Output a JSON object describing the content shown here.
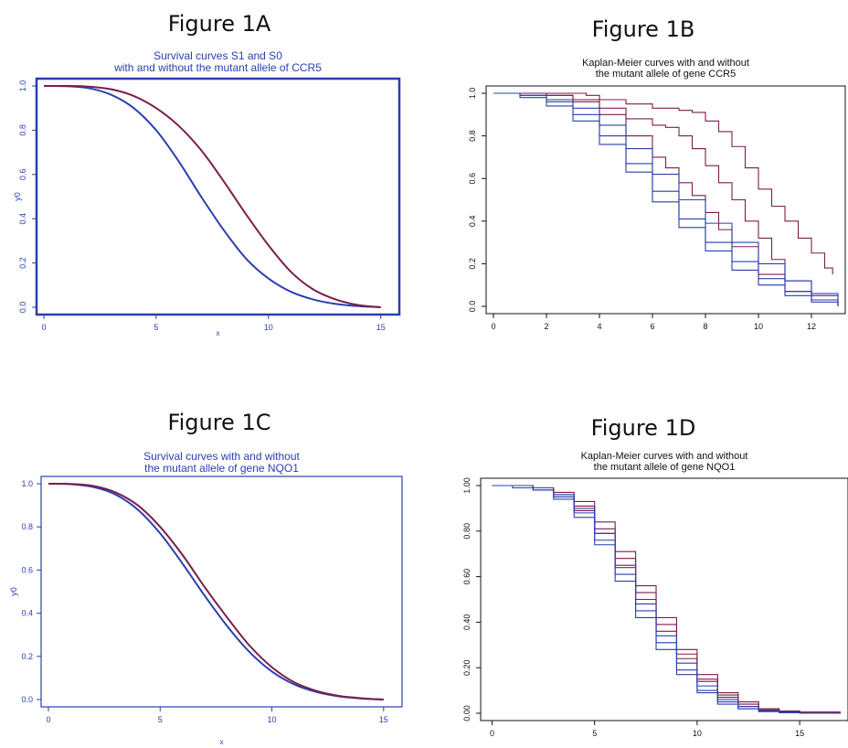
{
  "panels": {
    "a": {
      "figure_label": "Figure 1A"
    },
    "b": {
      "figure_label": "Figure 1B"
    },
    "c": {
      "figure_label": "Figure 1C"
    },
    "d": {
      "figure_label": "Figure 1D"
    }
  },
  "colors": {
    "blue": "#2b3fb0",
    "maroon": "#7a1f4a",
    "axis_blue": "#2a3fae",
    "axis_black": "#111111"
  },
  "chart_data": [
    {
      "id": "a",
      "type": "line",
      "title": "Survival curves S1 and S0\nwith and without the mutant allele of CCR5",
      "xlabel": "x",
      "ylabel": "y0",
      "xlim": [
        0,
        15.5
      ],
      "ylim": [
        0,
        1.0
      ],
      "xticks": [
        0,
        5,
        10,
        15
      ],
      "yticks": [
        0.0,
        0.2,
        0.4,
        0.6,
        0.8,
        1.0
      ],
      "ytick_labels": [
        "0.0",
        "0.2",
        "0.4",
        "0.6",
        "0.8",
        "1.0"
      ],
      "grid": false,
      "series": [
        {
          "color": "#2b3fb0",
          "x": [
            0,
            1,
            2,
            3,
            4,
            5,
            6,
            7,
            8,
            9,
            10,
            11,
            12,
            13,
            14,
            15
          ],
          "y": [
            1.0,
            0.999,
            0.99,
            0.96,
            0.9,
            0.8,
            0.66,
            0.5,
            0.35,
            0.22,
            0.13,
            0.07,
            0.035,
            0.015,
            0.005,
            0.0
          ]
        },
        {
          "color": "#7a1f4a",
          "x": [
            0,
            1,
            2,
            3,
            4,
            5,
            6,
            7,
            8,
            9,
            10,
            11,
            12,
            13,
            14,
            15
          ],
          "y": [
            1.0,
            1.0,
            0.997,
            0.985,
            0.955,
            0.9,
            0.82,
            0.71,
            0.57,
            0.42,
            0.28,
            0.16,
            0.08,
            0.035,
            0.01,
            0.0
          ]
        }
      ]
    },
    {
      "id": "b",
      "type": "line",
      "title": "Kaplan-Meier curves with and without\nthe mutant allele of gene  CCR5",
      "xlabel": "",
      "ylabel": "",
      "xlim": [
        0,
        13
      ],
      "ylim": [
        0,
        1.0
      ],
      "xticks": [
        0,
        2,
        4,
        6,
        8,
        10,
        12
      ],
      "yticks": [
        0.0,
        0.2,
        0.4,
        0.6,
        0.8,
        1.0
      ],
      "ytick_labels": [
        "0.0",
        "0.2",
        "0.4",
        "0.6",
        "0.8",
        "1.0"
      ],
      "grid": false,
      "step": true,
      "series": [
        {
          "color": "#7a1f4a",
          "x": [
            0,
            3.5,
            4,
            5,
            6,
            6.5,
            7,
            7.5,
            8,
            8.5,
            9,
            9.5,
            10,
            10.5,
            11,
            11.5,
            12,
            12.5,
            12.8
          ],
          "y": [
            1.0,
            0.99,
            0.97,
            0.95,
            0.93,
            0.93,
            0.92,
            0.91,
            0.87,
            0.82,
            0.75,
            0.65,
            0.55,
            0.47,
            0.4,
            0.32,
            0.25,
            0.18,
            0.15
          ]
        },
        {
          "color": "#7a1f4a",
          "x": [
            0,
            2,
            3,
            4,
            5,
            6,
            6.5,
            7,
            7.5,
            8,
            8.5,
            9,
            9.5,
            10,
            10.5,
            11,
            12,
            13
          ],
          "y": [
            1.0,
            0.99,
            0.97,
            0.93,
            0.88,
            0.85,
            0.84,
            0.8,
            0.74,
            0.66,
            0.58,
            0.5,
            0.4,
            0.32,
            0.22,
            0.12,
            0.05,
            0.0
          ]
        },
        {
          "color": "#7a1f4a",
          "x": [
            0,
            2,
            3,
            4,
            5,
            6,
            6.5,
            7,
            7.5,
            8,
            8.5,
            9,
            10,
            11,
            12,
            13
          ],
          "y": [
            1.0,
            0.99,
            0.96,
            0.9,
            0.8,
            0.7,
            0.65,
            0.58,
            0.52,
            0.44,
            0.36,
            0.28,
            0.15,
            0.07,
            0.03,
            0.0
          ]
        },
        {
          "color": "#2b3fb0",
          "x": [
            0,
            1,
            2,
            3,
            4,
            5,
            6,
            7,
            8,
            9,
            10,
            11,
            12,
            13
          ],
          "y": [
            1.0,
            0.99,
            0.97,
            0.93,
            0.85,
            0.74,
            0.62,
            0.5,
            0.39,
            0.3,
            0.2,
            0.12,
            0.06,
            0.04
          ]
        },
        {
          "color": "#2b3fb0",
          "x": [
            0,
            1,
            2,
            3,
            4,
            5,
            6,
            7,
            8,
            9,
            10,
            11,
            12,
            13
          ],
          "y": [
            1.0,
            0.99,
            0.96,
            0.9,
            0.8,
            0.67,
            0.54,
            0.41,
            0.3,
            0.21,
            0.13,
            0.07,
            0.03,
            0.0
          ]
        },
        {
          "color": "#2b3fb0",
          "x": [
            0,
            1,
            2,
            3,
            4,
            5,
            6,
            7,
            8,
            9,
            10,
            11,
            12,
            13
          ],
          "y": [
            1.0,
            0.98,
            0.94,
            0.87,
            0.76,
            0.63,
            0.49,
            0.37,
            0.26,
            0.17,
            0.1,
            0.05,
            0.02,
            0.0
          ]
        }
      ]
    },
    {
      "id": "c",
      "type": "line",
      "title": "Survival curves with and without\nthe mutant allele of gene NQO1",
      "xlabel": "x",
      "ylabel": "y0",
      "xlim": [
        0,
        15.5
      ],
      "ylim": [
        0,
        1.0
      ],
      "xticks": [
        0,
        5,
        10,
        15
      ],
      "yticks": [
        0.0,
        0.2,
        0.4,
        0.6,
        0.8,
        1.0
      ],
      "ytick_labels": [
        "0.0",
        "0.2",
        "0.4",
        "0.6",
        "0.8",
        "1.0"
      ],
      "grid": false,
      "series": [
        {
          "color": "#2b3fb0",
          "x": [
            0,
            1,
            2,
            3,
            4,
            5,
            6,
            7,
            8,
            9,
            10,
            11,
            12,
            13,
            14,
            15
          ],
          "y": [
            1.0,
            0.998,
            0.985,
            0.95,
            0.88,
            0.77,
            0.63,
            0.48,
            0.34,
            0.22,
            0.13,
            0.07,
            0.035,
            0.015,
            0.005,
            0.0
          ]
        },
        {
          "color": "#7a1f4a",
          "x": [
            0,
            1,
            2,
            3,
            4,
            5,
            6,
            7,
            8,
            9,
            10,
            11,
            12,
            13,
            14,
            15
          ],
          "y": [
            1.0,
            0.999,
            0.99,
            0.96,
            0.9,
            0.8,
            0.67,
            0.52,
            0.38,
            0.25,
            0.15,
            0.08,
            0.04,
            0.017,
            0.006,
            0.0
          ]
        }
      ]
    },
    {
      "id": "d",
      "type": "line",
      "title": "Kaplan-Meier curves with and without\nthe mutant allele of gene  NQO1",
      "xlabel": "",
      "ylabel": "",
      "xlim": [
        -0.2,
        17
      ],
      "ylim": [
        0,
        1.0
      ],
      "xticks": [
        0,
        5,
        10,
        15
      ],
      "yticks": [
        0.0,
        0.2,
        0.4,
        0.6,
        0.8,
        1.0
      ],
      "ytick_labels": [
        "0.00",
        "0.20",
        "0.40",
        "0.60",
        "0.80",
        "1.00"
      ],
      "grid": false,
      "step": true,
      "series": [
        {
          "color": "#7a1f4a",
          "x": [
            0,
            1,
            2,
            3,
            4,
            5,
            6,
            7,
            8,
            9,
            10,
            11,
            12,
            13,
            14,
            15,
            16,
            17
          ],
          "y": [
            1.0,
            1.0,
            0.99,
            0.97,
            0.93,
            0.84,
            0.71,
            0.56,
            0.42,
            0.28,
            0.17,
            0.09,
            0.05,
            0.02,
            0.01,
            0.005,
            0.005,
            0.005
          ]
        },
        {
          "color": "#7a1f4a",
          "x": [
            0,
            1,
            2,
            3,
            4,
            5,
            6,
            7,
            8,
            9,
            10,
            11,
            12,
            13,
            14,
            15,
            16,
            17
          ],
          "y": [
            1.0,
            1.0,
            0.99,
            0.96,
            0.91,
            0.81,
            0.68,
            0.53,
            0.39,
            0.26,
            0.15,
            0.08,
            0.04,
            0.02,
            0.01,
            0.005,
            0.005,
            0.005
          ]
        },
        {
          "color": "#7a1f4a",
          "x": [
            0,
            1,
            2,
            3,
            4,
            5,
            6,
            7,
            8,
            9,
            10,
            11,
            12,
            13,
            14,
            15,
            16,
            17
          ],
          "y": [
            1.0,
            1.0,
            0.98,
            0.95,
            0.89,
            0.79,
            0.65,
            0.5,
            0.36,
            0.24,
            0.14,
            0.07,
            0.03,
            0.015,
            0.008,
            0.005,
            0.005,
            0.005
          ]
        },
        {
          "color": "#2b3fb0",
          "x": [
            0,
            1,
            2,
            3,
            4,
            5,
            6,
            7,
            8,
            9,
            10,
            11,
            12,
            13,
            14,
            15,
            16,
            17
          ],
          "y": [
            1.0,
            1.0,
            0.99,
            0.96,
            0.9,
            0.79,
            0.64,
            0.48,
            0.34,
            0.22,
            0.12,
            0.06,
            0.03,
            0.012,
            0.005,
            0.0,
            0.0,
            0.0
          ]
        },
        {
          "color": "#2b3fb0",
          "x": [
            0,
            1,
            2,
            3,
            4,
            5,
            6,
            7,
            8,
            9,
            10,
            11,
            12,
            13,
            14,
            15,
            16,
            17
          ],
          "y": [
            1.0,
            1.0,
            0.98,
            0.95,
            0.88,
            0.76,
            0.61,
            0.45,
            0.31,
            0.19,
            0.1,
            0.05,
            0.02,
            0.008,
            0.003,
            0.0,
            0.0,
            0.0
          ]
        },
        {
          "color": "#2b3fb0",
          "x": [
            0,
            1,
            2,
            3,
            4,
            5,
            6,
            7,
            8,
            9,
            10,
            11,
            12,
            13,
            14,
            15,
            16,
            17
          ],
          "y": [
            1.0,
            0.99,
            0.98,
            0.94,
            0.86,
            0.74,
            0.58,
            0.42,
            0.28,
            0.17,
            0.09,
            0.04,
            0.02,
            0.007,
            0.002,
            0.0,
            0.0,
            0.0
          ]
        }
      ]
    }
  ]
}
